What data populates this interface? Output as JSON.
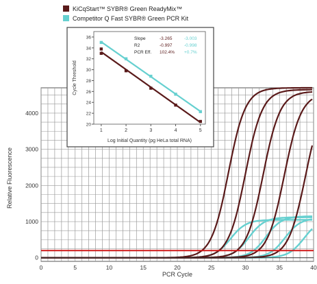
{
  "chart_data": [
    {
      "type": "line",
      "xlabel": "PCR Cycle",
      "ylabel": "Relative Fluorescence",
      "xlim": [
        0,
        40
      ],
      "ylim": [
        -100,
        4700
      ],
      "xticks": [
        0,
        5,
        10,
        15,
        20,
        25,
        30,
        35,
        40
      ],
      "yticks": [
        0,
        1000,
        2000,
        3000,
        4000
      ],
      "grid": true,
      "threshold": 200,
      "colors": {
        "brand": "#5a1a1a",
        "competitor": "#66d0d0",
        "threshold": "#d01818",
        "grid": "#9a9a9a"
      },
      "legend": {
        "placement": "top",
        "entries": [
          "KiCqStart™ SYBR® Green ReadyMix™",
          "Competitor Q Fast SYBR® Green PCR Kit"
        ]
      },
      "series": [
        {
          "name": "KiCqStart™ SYBR® Green ReadyMix™",
          "group": "brand",
          "midpoint": 27.5,
          "plateau": 4700
        },
        {
          "name": "KiCqStart™ SYBR® Green ReadyMix™",
          "group": "brand",
          "midpoint": 30.0,
          "plateau": 4650
        },
        {
          "name": "KiCqStart™ SYBR® Green ReadyMix™",
          "group": "brand",
          "midpoint": 32.6,
          "plateau": 4600
        },
        {
          "name": "KiCqStart™ SYBR® Green ReadyMix™",
          "group": "brand",
          "midpoint": 35.7,
          "plateau": 4550
        },
        {
          "name": "KiCqStart™ SYBR® Green ReadyMix™",
          "group": "brand",
          "midpoint": 38.8,
          "plateau": 4500
        },
        {
          "name": "Competitor Q Fast SYBR® Green PCR Kit",
          "group": "competitor",
          "midpoint": 27.8,
          "plateau": 1050
        },
        {
          "name": "Competitor Q Fast SYBR® Green PCR Kit",
          "group": "competitor",
          "midpoint": 30.5,
          "plateau": 1120
        },
        {
          "name": "Competitor Q Fast SYBR® Green PCR Kit",
          "group": "competitor",
          "midpoint": 33.0,
          "plateau": 1150
        },
        {
          "name": "Competitor Q Fast SYBR® Green PCR Kit",
          "group": "competitor",
          "midpoint": 35.8,
          "plateau": 1100
        },
        {
          "name": "Competitor Q Fast SYBR® Green PCR Kit",
          "group": "competitor",
          "midpoint": 38.6,
          "plateau": 1080
        }
      ]
    },
    {
      "type": "scatter",
      "xlabel": "Log Initial Quantity (pg HeLa total RNA)",
      "ylabel": "Cycle Threshold",
      "xlim": [
        0.7,
        5.2
      ],
      "ylim": [
        20,
        37
      ],
      "xticks": [
        1,
        2,
        3,
        4,
        5
      ],
      "yticks": [
        20,
        22,
        24,
        26,
        28,
        30,
        32,
        34,
        36
      ],
      "stats": {
        "labels": [
          "Slope",
          "R2",
          "PCR Eff."
        ],
        "brand": [
          "-3.265",
          "-0.997",
          "102.4%"
        ],
        "competitor": [
          "-3.003",
          "-0.998",
          "+0.7%"
        ]
      },
      "series": [
        {
          "name": "KiCqStart™ SYBR® Green ReadyMix™",
          "group": "brand",
          "x": [
            1,
            1,
            2,
            3,
            4,
            5
          ],
          "y": [
            33.8,
            33.0,
            29.8,
            26.6,
            23.5,
            20.5
          ]
        },
        {
          "name": "Competitor Q Fast SYBR® Green PCR Kit",
          "group": "competitor",
          "x": [
            1,
            2,
            3,
            4,
            5
          ],
          "y": [
            35.0,
            32.0,
            28.8,
            25.5,
            22.3
          ]
        }
      ]
    }
  ]
}
